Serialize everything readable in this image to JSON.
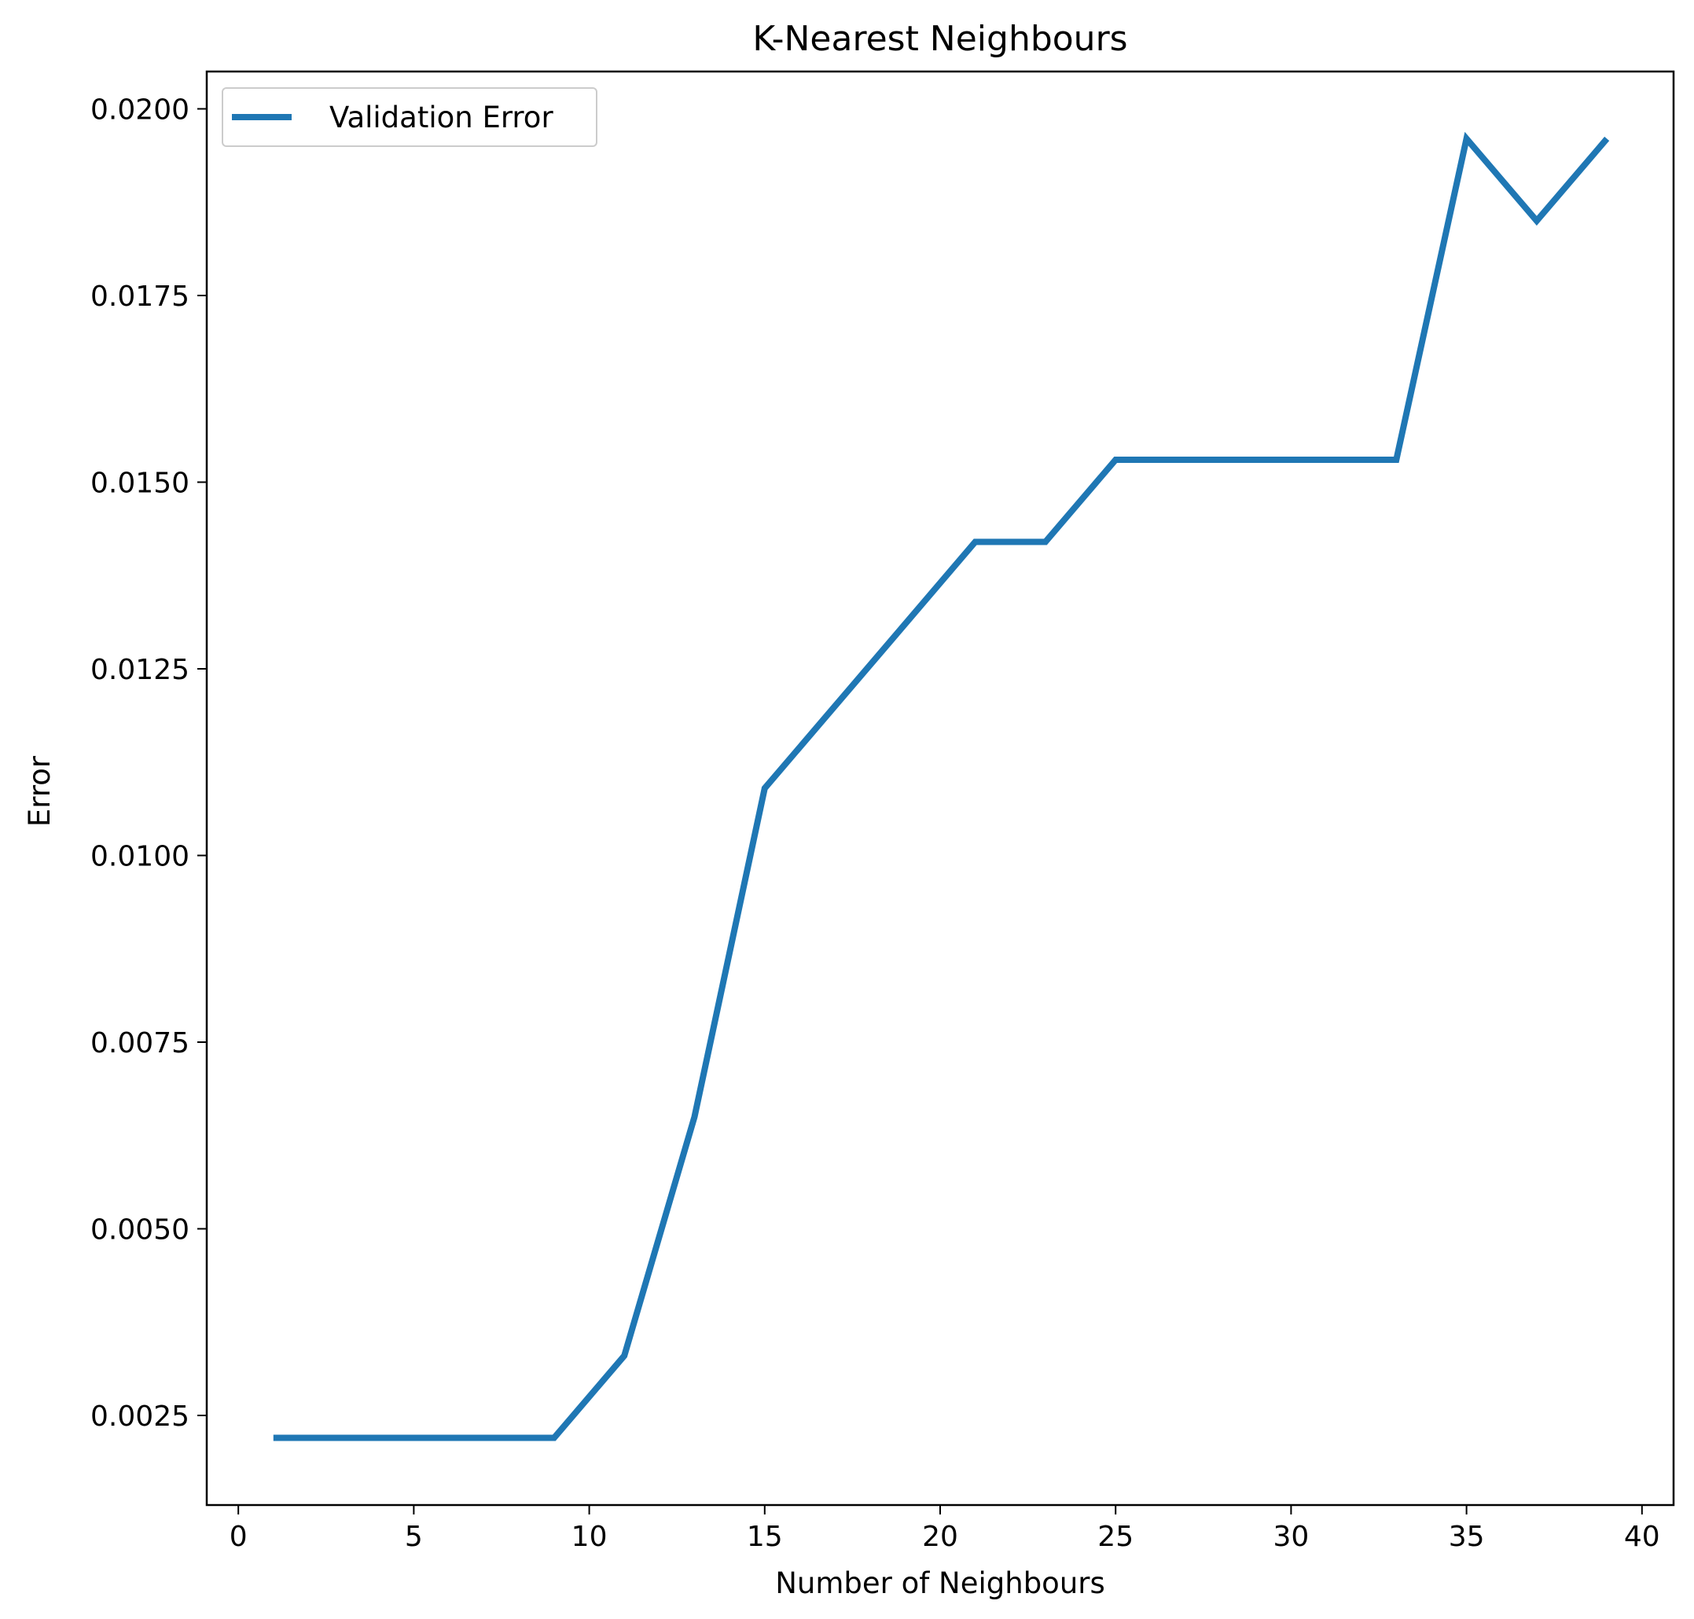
{
  "chart_data": {
    "type": "line",
    "title": "K-Nearest Neighbours",
    "xlabel": "Number of Neighbours",
    "ylabel": "Error",
    "xlim": [
      -0.9,
      40.9
    ],
    "ylim": [
      0.0013,
      0.0205
    ],
    "xticks": [
      0,
      5,
      10,
      15,
      20,
      25,
      30,
      35,
      40
    ],
    "xtick_labels": [
      "0",
      "5",
      "10",
      "15",
      "20",
      "25",
      "30",
      "35",
      "40"
    ],
    "yticks": [
      0.0025,
      0.005,
      0.0075,
      0.01,
      0.0125,
      0.015,
      0.0175,
      0.02
    ],
    "ytick_labels": [
      "0.0025",
      "0.0050",
      "0.0075",
      "0.0100",
      "0.0125",
      "0.0150",
      "0.0175",
      "0.0200"
    ],
    "grid": false,
    "legend_position": "top-left",
    "series": [
      {
        "name": "Validation Error",
        "color": "#1f77b4",
        "x": [
          1,
          3,
          5,
          7,
          9,
          11,
          13,
          15,
          17,
          19,
          21,
          23,
          25,
          27,
          29,
          31,
          33,
          35,
          37,
          39
        ],
        "y": [
          0.0022,
          0.0022,
          0.0022,
          0.0022,
          0.0022,
          0.0033,
          0.0065,
          0.0109,
          0.012,
          0.0131,
          0.0142,
          0.0142,
          0.0153,
          0.0153,
          0.0153,
          0.0153,
          0.0153,
          0.0196,
          0.0185,
          0.0196
        ]
      }
    ]
  }
}
